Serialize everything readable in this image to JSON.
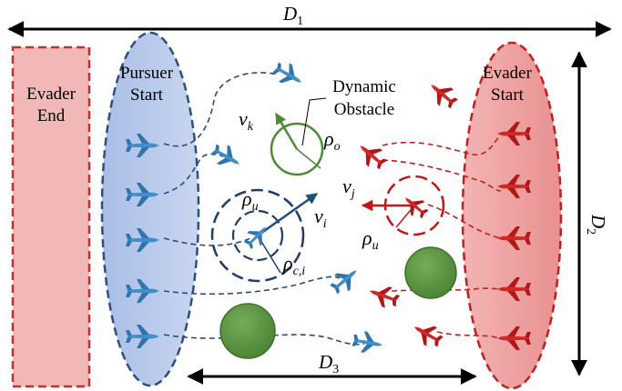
{
  "labels": {
    "evader_end": [
      "Evader",
      "End"
    ],
    "pursuer_start": [
      "Pursuer",
      "Start"
    ],
    "evader_start": [
      "Evader",
      "Start"
    ],
    "dynamic_obstacle": [
      "Dynamic",
      "Obstacle"
    ]
  },
  "dims": {
    "d1": {
      "base": "D",
      "sub": "1"
    },
    "d2": {
      "base": "D",
      "sub": "2"
    },
    "d3": {
      "base": "D",
      "sub": "3"
    }
  },
  "symbols": {
    "vk": {
      "base": "v",
      "sub": "k"
    },
    "rho_o": {
      "base": "ρ",
      "sub": "o"
    },
    "rho_u_left": {
      "base": "ρ",
      "sub": "u"
    },
    "vi": {
      "base": "v",
      "sub": "i"
    },
    "rho_ci": {
      "base": "ρ",
      "sub": "c,i"
    },
    "vj": {
      "base": "v",
      "sub": "j"
    },
    "rho_u_right": {
      "base": "ρ",
      "sub": "u"
    }
  },
  "colors": {
    "evader_end_fill": "#f2b8b8",
    "evader_end_stroke": "#c0302f",
    "pursuer_fill": "#b8c9ea",
    "pursuer_stroke": "#2d4f86",
    "evader_start_fill": "#f0a9a9",
    "evader_start_stroke": "#c02020",
    "pursuer_drone": "#3f8fc9",
    "evader_drone": "#d32626",
    "obstacle_stroke": "#4d8a35",
    "static_obstacle_fill": "#5f9a45",
    "blue_ring": "#1f3d66",
    "red_ring": "#c01818",
    "green_arrow": "#4d8a35"
  },
  "icons": {
    "pursuer": "pursuer-drone-icon",
    "evader": "evader-drone-icon"
  }
}
